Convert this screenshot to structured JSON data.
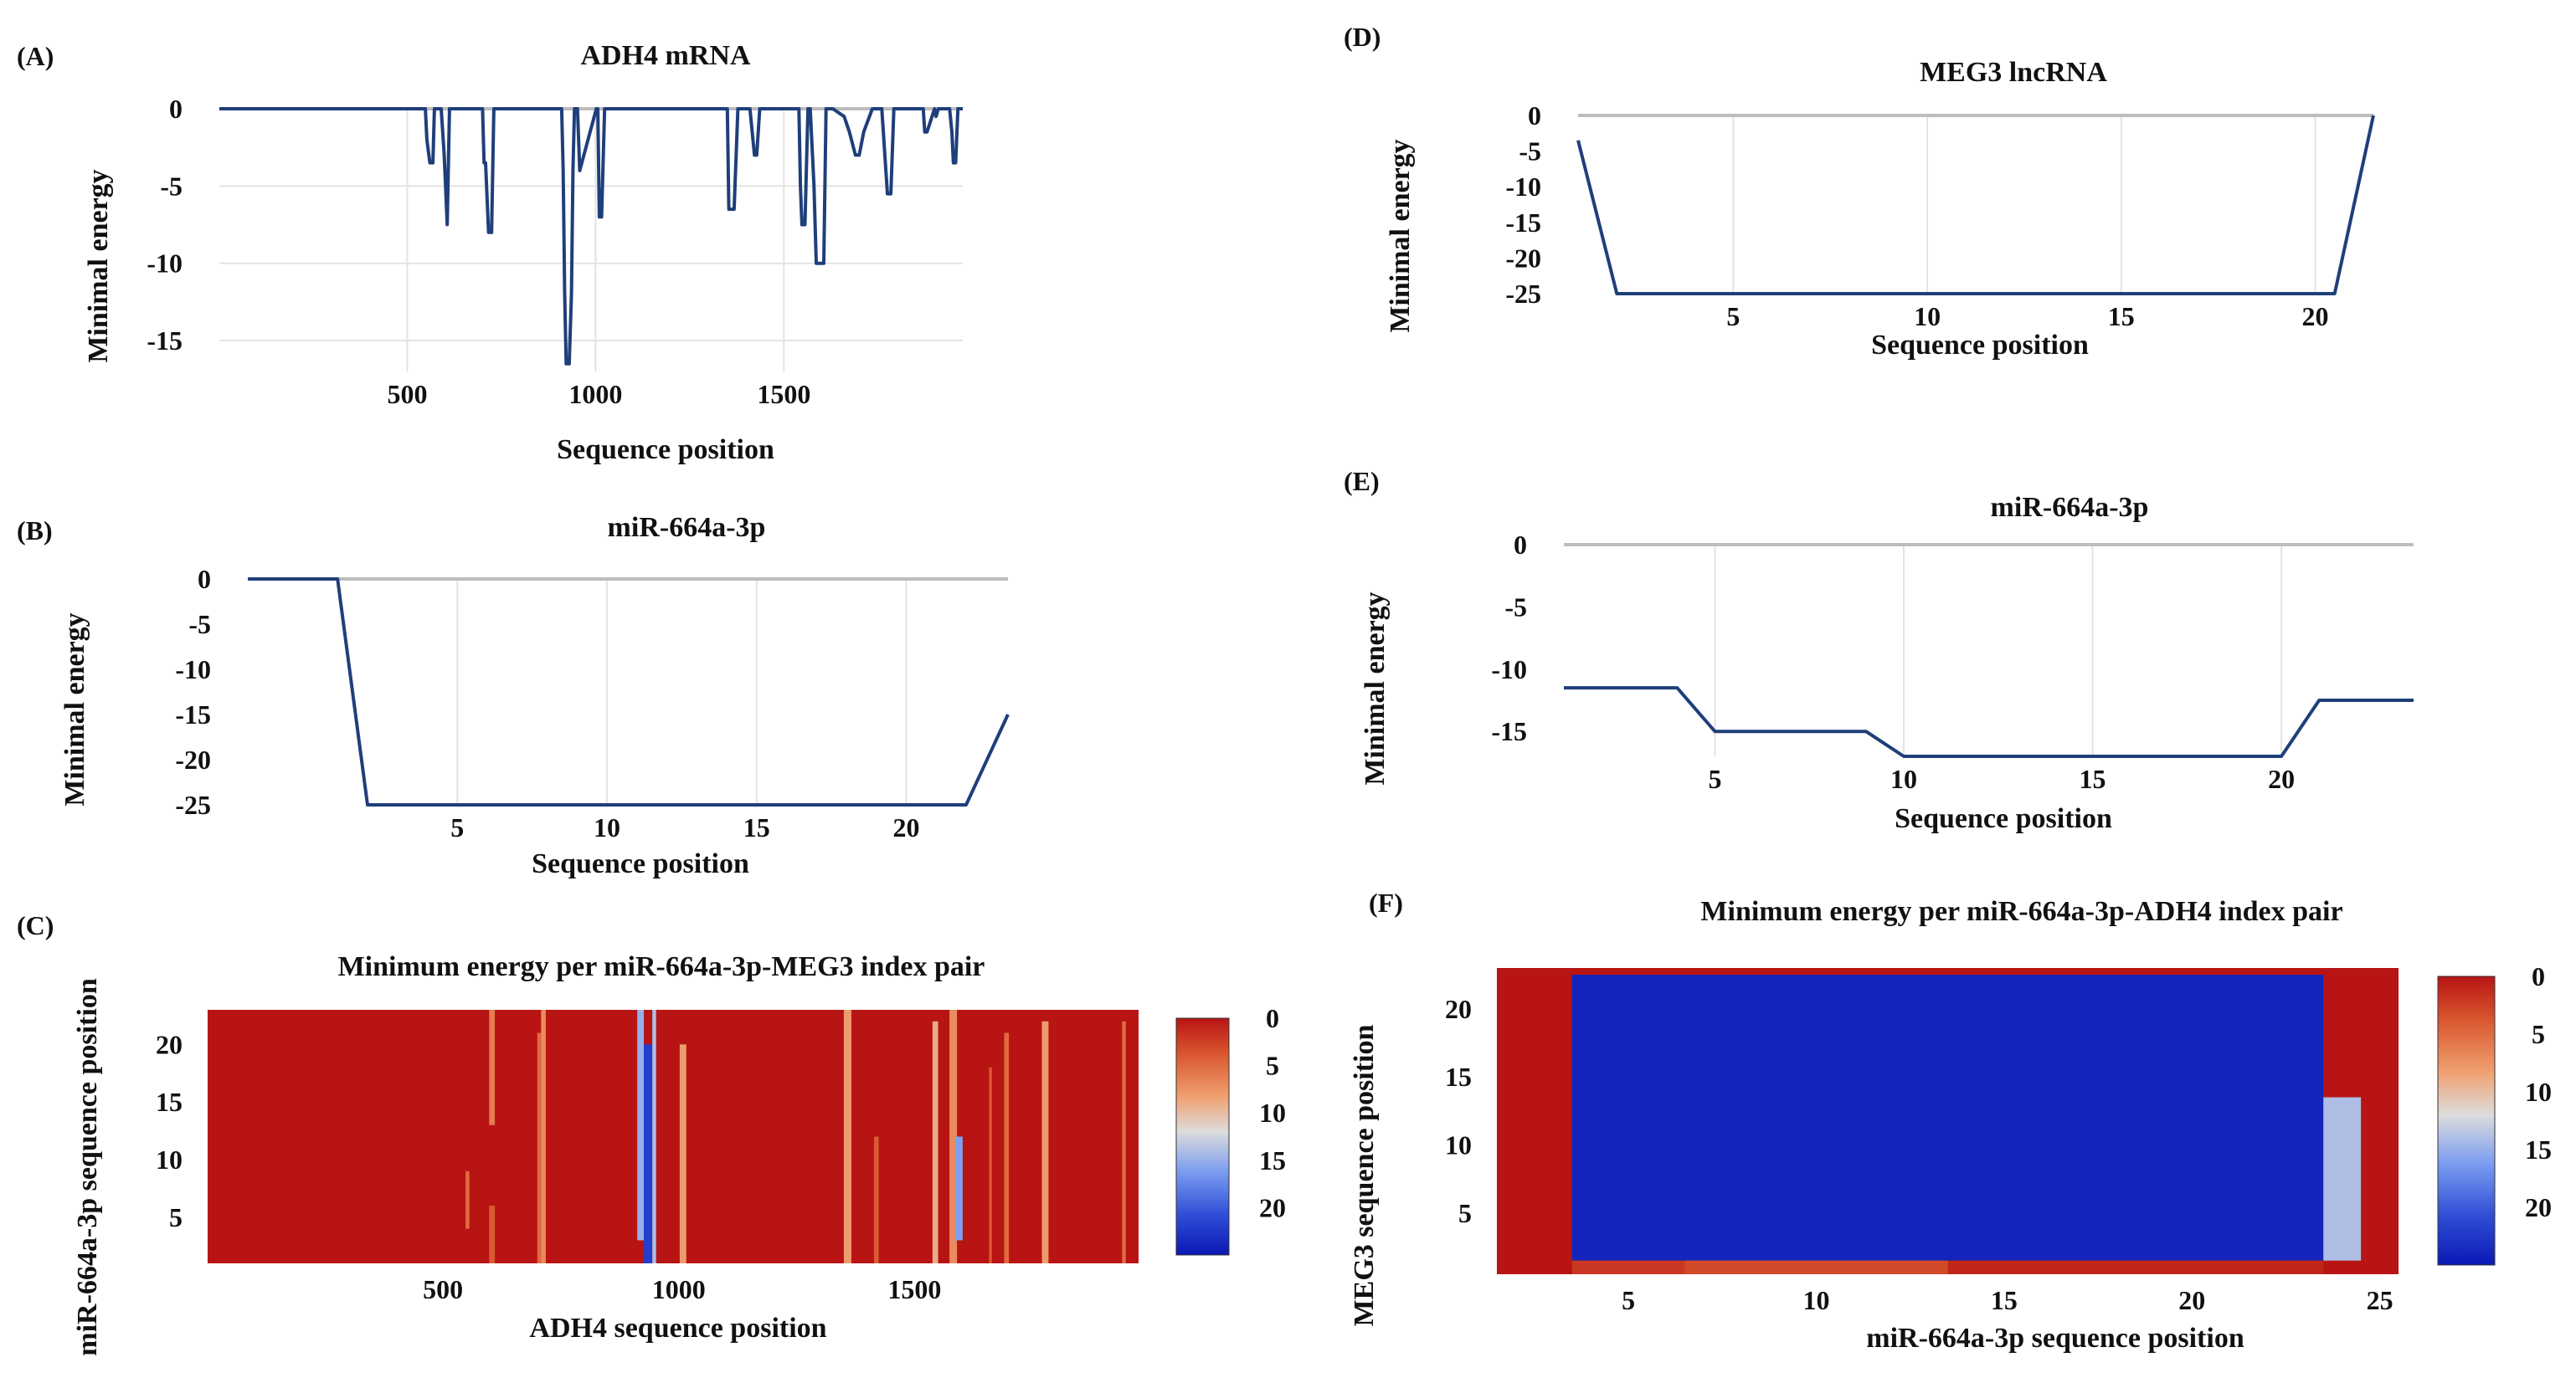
{
  "colors": {
    "curve": "#1f3f7a",
    "zero_line": "#bdbdbd",
    "heat_high": "#b81414",
    "heat_low": "#0a18b4"
  },
  "chart_data": [
    {
      "id": "A",
      "panel": "(A)",
      "type": "line",
      "title": "ADH4 mRNA",
      "xlabel": "Sequence position",
      "ylabel": "Minimal  energy",
      "xlim": [
        1,
        1975
      ],
      "ylim": [
        -17,
        0
      ],
      "xticks": [
        500,
        1000,
        1500
      ],
      "yticks": [
        0,
        -5,
        -10,
        -15
      ],
      "x": [
        1,
        548,
        552,
        560,
        568,
        572,
        590,
        598,
        606,
        612,
        700,
        704,
        708,
        716,
        724,
        730,
        910,
        914,
        918,
        922,
        930,
        936,
        940,
        944,
        952,
        958,
        1002,
        1006,
        1010,
        1016,
        1024,
        1030,
        1350,
        1354,
        1358,
        1368,
        1378,
        1383,
        1410,
        1416,
        1422,
        1428,
        1436,
        1540,
        1544,
        1548,
        1556,
        1564,
        1570,
        1580,
        1586,
        1592,
        1606,
        1612,
        1618,
        1630,
        1660,
        1674,
        1690,
        1700,
        1712,
        1735,
        1760,
        1775,
        1780,
        1784,
        1792,
        1820,
        1870,
        1874,
        1880,
        1900,
        1904,
        1910,
        1940,
        1946,
        1950,
        1956,
        1962,
        1968,
        1975
      ],
      "y": [
        0,
        0,
        -2,
        -3.5,
        -3.5,
        0,
        0,
        -3,
        -7.5,
        0,
        0,
        -3.5,
        -3.5,
        -8,
        -8,
        0,
        0,
        -4,
        -12,
        -16.5,
        -16.5,
        -12,
        -4,
        0,
        0,
        -4,
        0,
        0,
        -7,
        -7,
        0,
        0,
        0,
        -6.5,
        -6.5,
        -6.5,
        0,
        0,
        0,
        -1.5,
        -3,
        -3,
        0,
        0,
        -5,
        -7.5,
        -7.5,
        0,
        0,
        -5,
        -10,
        -10,
        -10,
        0,
        0,
        0,
        -0.5,
        -1.5,
        -3,
        -3,
        -1.5,
        0,
        0,
        -5.5,
        -5.5,
        -5.5,
        0,
        0,
        0,
        -1.5,
        -1.5,
        0,
        -0.5,
        0,
        0,
        -1.5,
        -3.5,
        -3.5,
        0,
        0,
        0
      ]
    },
    {
      "id": "B",
      "panel": "(B)",
      "type": "line",
      "title": "miR-664a-3p",
      "xlabel": "Sequence position",
      "ylabel": "Minimal  energy",
      "xlim": [
        -2,
        23.4
      ],
      "ylim": [
        -25,
        0
      ],
      "xticks": [
        5,
        10,
        15,
        20
      ],
      "yticks": [
        0,
        -5,
        -10,
        -15,
        -20,
        -25
      ],
      "x": [
        -2,
        1,
        2,
        22,
        23.4
      ],
      "y": [
        0,
        0,
        -25,
        -25,
        -15
      ]
    },
    {
      "id": "D",
      "panel": "(D)",
      "type": "line",
      "title": "MEG3 lncRNA",
      "xlabel": "Sequence position",
      "ylabel": "Minimal  energy",
      "xlim": [
        1,
        21.5
      ],
      "ylim": [
        -25,
        0
      ],
      "xticks": [
        5,
        10,
        15,
        20
      ],
      "yticks": [
        0,
        -5,
        -10,
        -15,
        -20,
        -25
      ],
      "x": [
        1,
        2,
        20.5,
        21.5
      ],
      "y": [
        -3.5,
        -25,
        -25,
        0
      ]
    },
    {
      "id": "E",
      "panel": "(E)",
      "type": "line",
      "title": "miR-664a-3p",
      "xlabel": "Sequence position",
      "ylabel": "Minimal  energy",
      "xlim": [
        1,
        23.5
      ],
      "ylim": [
        -17,
        0
      ],
      "xticks": [
        5,
        10,
        15,
        20
      ],
      "yticks": [
        0,
        -5,
        -10,
        -15
      ],
      "x": [
        1,
        4,
        5,
        9,
        10,
        20,
        21,
        23.5
      ],
      "y": [
        -11.5,
        -11.5,
        -15,
        -15,
        -17,
        -17,
        -12.5,
        -12.5
      ]
    },
    {
      "id": "C",
      "panel": "(C)",
      "type": "heatmap",
      "title": "Minimum  energy per miR-664a-3p-MEG3  index pair",
      "xlabel": "ADH4 sequence position",
      "ylabel": "miR-664a-3p  sequence position",
      "xlim": [
        1,
        1975
      ],
      "ylim": [
        1,
        23
      ],
      "xticks": [
        500,
        1000,
        1500
      ],
      "yticks": [
        5,
        10,
        15,
        20
      ],
      "colorbar": {
        "ticks": [
          0,
          5,
          10,
          15,
          20
        ],
        "vmin": 0,
        "vmax": 25
      },
      "background": 0,
      "cells": [
        {
          "x0": 548,
          "x1": 556,
          "y0": 4,
          "y1": 9,
          "v": 5
        },
        {
          "x0": 598,
          "x1": 610,
          "y0": 13,
          "y1": 23,
          "v": 6
        },
        {
          "x0": 598,
          "x1": 610,
          "y0": 1,
          "y1": 6,
          "v": 4
        },
        {
          "x0": 700,
          "x1": 708,
          "y0": 1,
          "y1": 21,
          "v": 5
        },
        {
          "x0": 708,
          "x1": 718,
          "y0": 1,
          "y1": 23,
          "v": 7
        },
        {
          "x0": 912,
          "x1": 926,
          "y0": 3,
          "y1": 23,
          "v": 15
        },
        {
          "x0": 926,
          "x1": 944,
          "y0": 1,
          "y1": 20,
          "v": 22
        },
        {
          "x0": 944,
          "x1": 952,
          "y0": 1,
          "y1": 23,
          "v": 14
        },
        {
          "x0": 1002,
          "x1": 1016,
          "y0": 1,
          "y1": 20,
          "v": 8
        },
        {
          "x0": 1350,
          "x1": 1366,
          "y0": 1,
          "y1": 23,
          "v": 8
        },
        {
          "x0": 1414,
          "x1": 1424,
          "y0": 1,
          "y1": 12,
          "v": 4
        },
        {
          "x0": 1538,
          "x1": 1550,
          "y0": 1,
          "y1": 22,
          "v": 9
        },
        {
          "x0": 1574,
          "x1": 1590,
          "y0": 1,
          "y1": 23,
          "v": 7
        },
        {
          "x0": 1586,
          "x1": 1602,
          "y0": 3,
          "y1": 12,
          "v": 16
        },
        {
          "x0": 1658,
          "x1": 1664,
          "y0": 1,
          "y1": 18,
          "v": 4
        },
        {
          "x0": 1690,
          "x1": 1700,
          "y0": 1,
          "y1": 21,
          "v": 5
        },
        {
          "x0": 1770,
          "x1": 1784,
          "y0": 1,
          "y1": 22,
          "v": 8
        },
        {
          "x0": 1940,
          "x1": 1948,
          "y0": 1,
          "y1": 22,
          "v": 5
        }
      ]
    },
    {
      "id": "F",
      "panel": "(F)",
      "type": "heatmap",
      "title": "Minimum  energy per miR-664a-3p-ADH4  index pair",
      "xlabel": "miR-664a-3p  sequence position",
      "ylabel": "MEG3 sequence position",
      "xlim": [
        1.5,
        25.5
      ],
      "ylim": [
        0.5,
        23
      ],
      "xticks": [
        5,
        10,
        15,
        20,
        25
      ],
      "yticks": [
        5,
        10,
        15,
        20
      ],
      "colorbar": {
        "ticks": [
          0,
          5,
          10,
          15,
          20
        ],
        "vmin": 0,
        "vmax": 25
      },
      "background": 0,
      "cells": [
        {
          "x0": 3.5,
          "x1": 23.5,
          "y0": 1.5,
          "y1": 22.5,
          "v": 24
        },
        {
          "x0": 23.5,
          "x1": 24.5,
          "y0": 1.5,
          "y1": 13.5,
          "v": 14
        },
        {
          "x0": 3.5,
          "x1": 6.5,
          "y0": 0.5,
          "y1": 1.5,
          "v": 2
        },
        {
          "x0": 6.5,
          "x1": 13.5,
          "y0": 0.5,
          "y1": 1.5,
          "v": 3
        },
        {
          "x0": 13.5,
          "x1": 23.5,
          "y0": 0.5,
          "y1": 1.5,
          "v": 1
        }
      ]
    }
  ]
}
